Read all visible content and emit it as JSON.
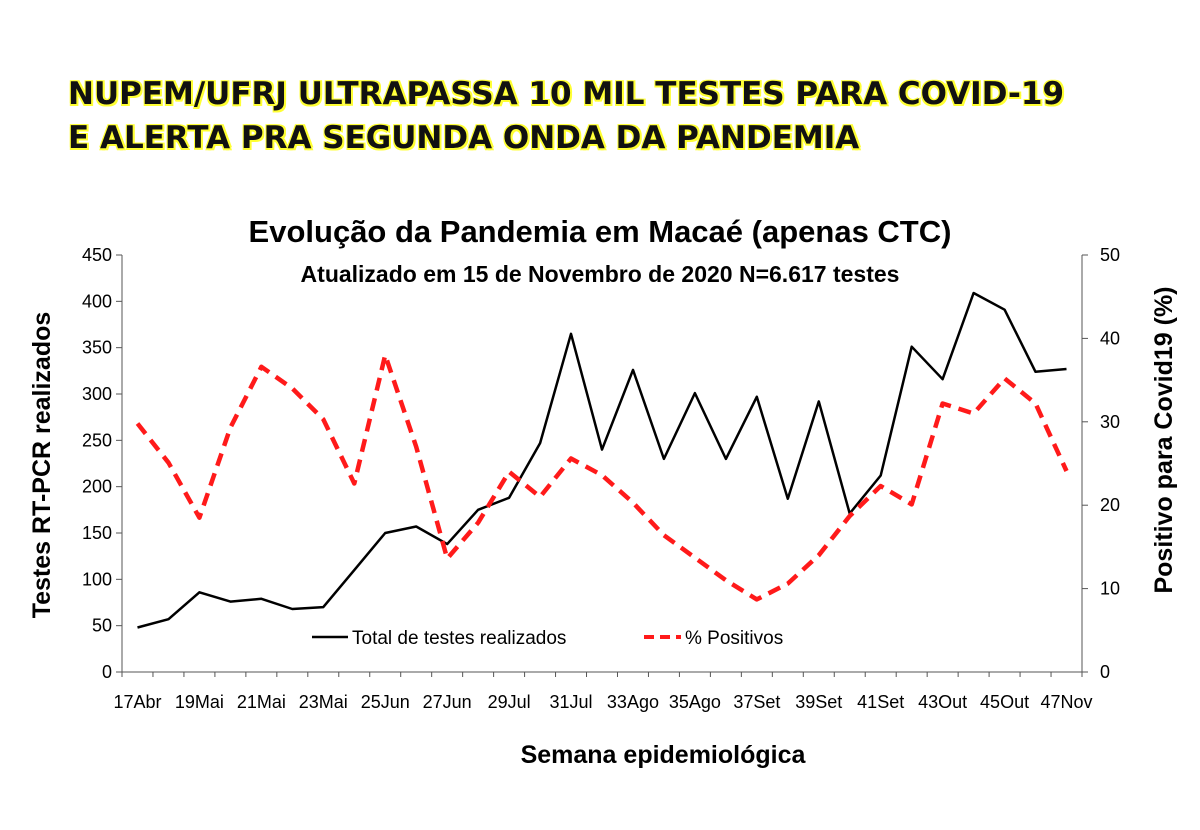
{
  "headline": {
    "line1": "NUPEM/UFRJ ULTRAPASSA 10 MIL TESTES PARA COVID-19",
    "line2": "E ALERTA PRA SEGUNDA ONDA DA PANDEMIA",
    "highlight_color": "#ffff33"
  },
  "chart_data": {
    "type": "line",
    "title": "Evolução da Pandemia em Macaé (apenas CTC)",
    "subtitle": "Atualizado em 15 de Novembro de 2020 N=6.617 testes",
    "xlabel": "Semana epidemiológica",
    "ylabel_left": "Testes RT-PCR realizados",
    "ylabel_right": "Positivo para Covid19 (%)",
    "ylim_left": [
      0,
      450
    ],
    "ylim_right": [
      0,
      50
    ],
    "yticks_left": [
      0,
      50,
      100,
      150,
      200,
      250,
      300,
      350,
      400,
      450
    ],
    "yticks_right": [
      0,
      10,
      20,
      30,
      40,
      50
    ],
    "x_tick_labels": [
      "17Abr",
      "19Mai",
      "21Mai",
      "23Mai",
      "25Jun",
      "27Jun",
      "29Jul",
      "31Jul",
      "33Ago",
      "35Ago",
      "37Set",
      "39Set",
      "41Set",
      "43Out",
      "45Out",
      "47Nov"
    ],
    "grid": false,
    "legend_position": "bottom-center",
    "series": [
      {
        "name": "Total de testes realizados",
        "axis": "left",
        "color": "#000000",
        "style": "solid",
        "values": [
          48,
          57,
          86,
          76,
          79,
          68,
          70,
          110,
          150,
          157,
          138,
          175,
          188,
          247,
          365,
          240,
          326,
          230,
          301,
          230,
          297,
          187,
          292,
          171,
          212,
          351,
          316,
          409,
          391,
          324,
          327
        ]
      },
      {
        "name": "% Positivos",
        "axis": "right",
        "color": "#ff1a1a",
        "style": "dashed",
        "values": [
          29.8,
          25.1,
          18.5,
          29.3,
          36.6,
          34,
          30.3,
          22.6,
          38,
          27,
          13.6,
          17.9,
          24,
          21,
          25.6,
          23.6,
          20.3,
          16.4,
          13.7,
          11,
          8.7,
          10.6,
          14,
          18.7,
          22.3,
          20.1,
          32.2,
          31,
          35.2,
          32.2,
          24.1
        ]
      }
    ]
  }
}
